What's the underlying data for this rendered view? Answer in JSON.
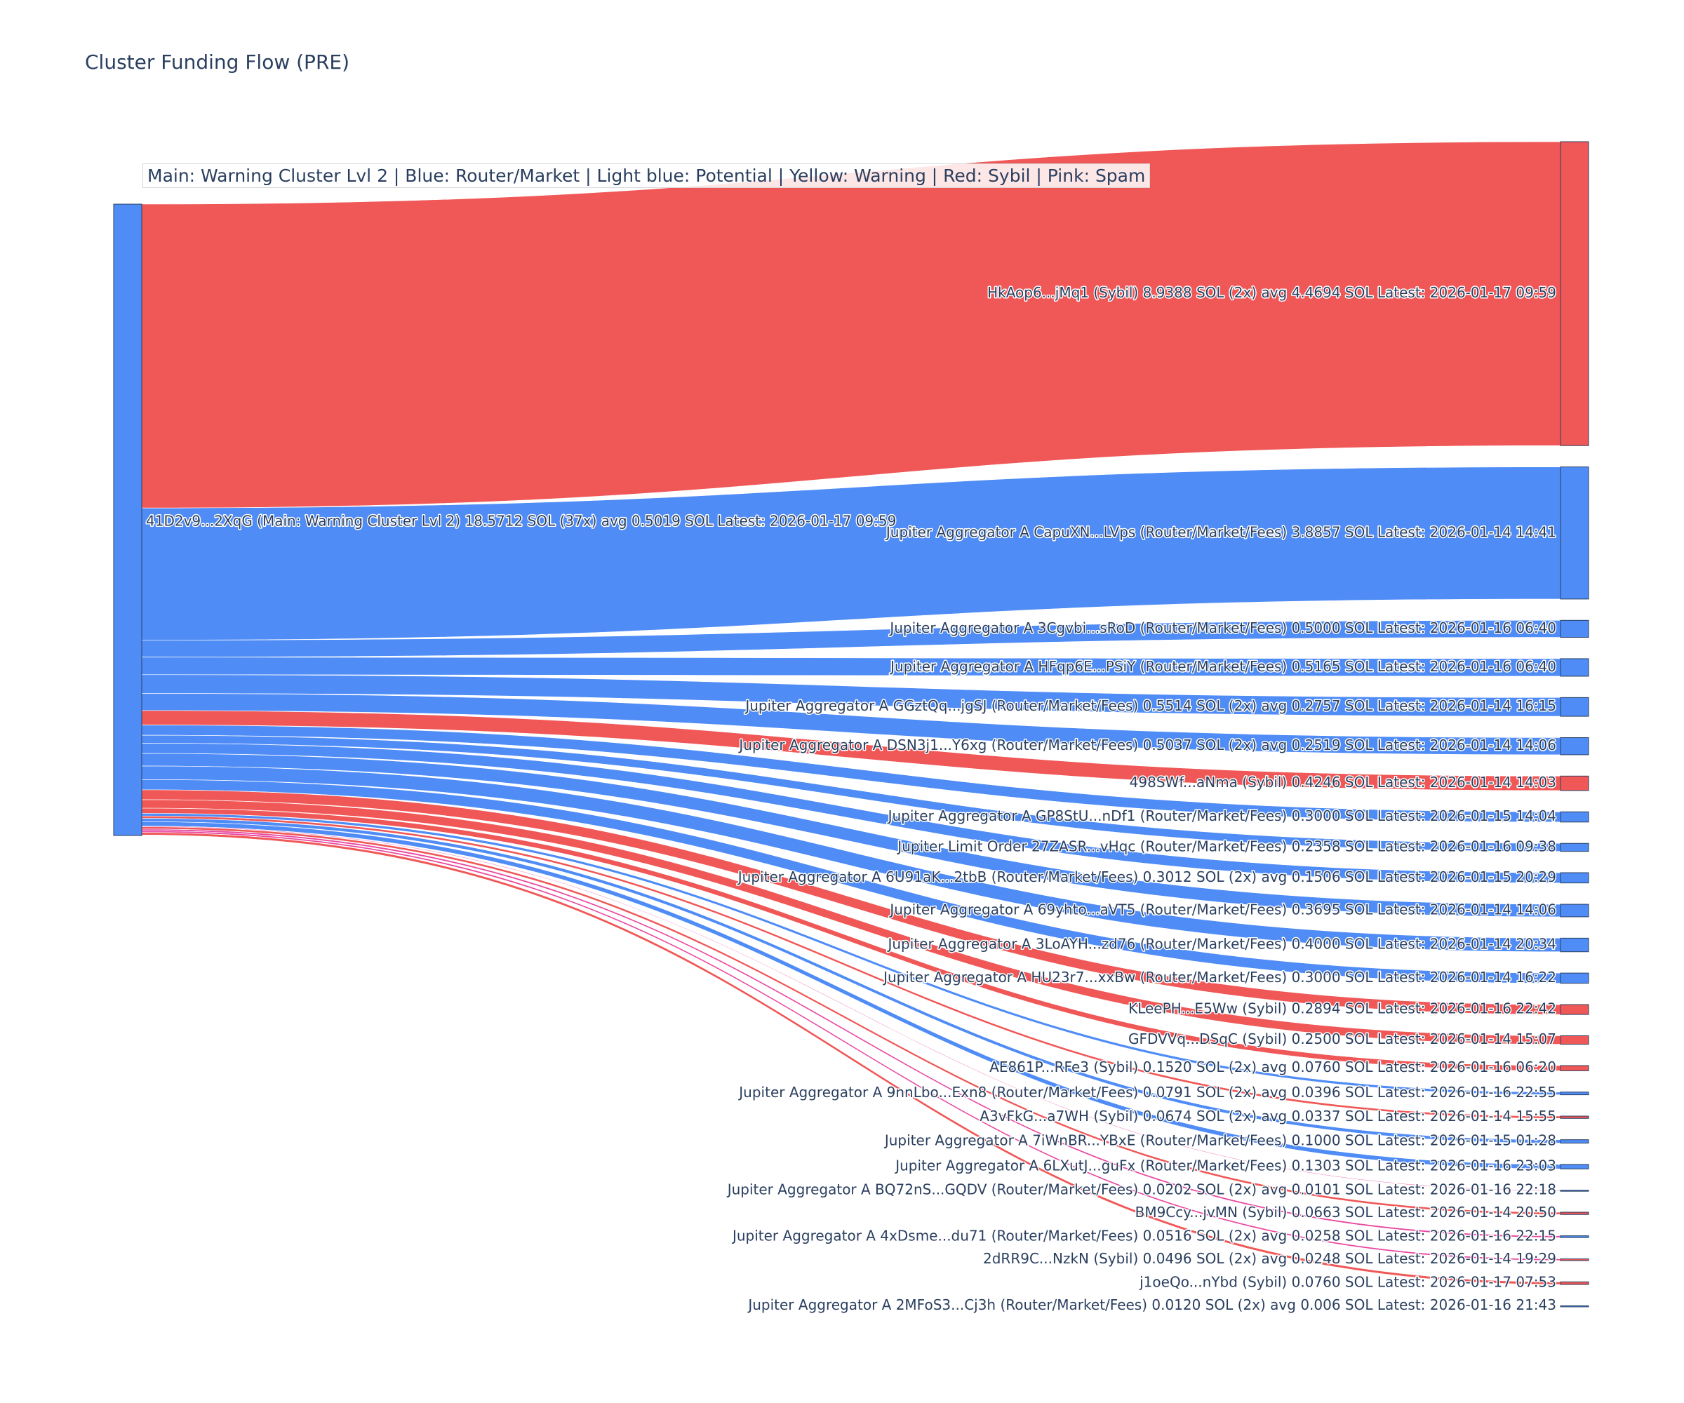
{
  "chart_data": {
    "type": "sankey",
    "title": "Cluster Funding Flow (PRE)",
    "legend_text": "Main: Warning Cluster Lvl 2  |  Blue: Router/Market | Light blue: Potential | Yellow: Warning | Red: Sybil | Pink: Spam",
    "colors": {
      "router": "#4f8cf6",
      "sybil": "#f05757",
      "spam": "#e8479f",
      "source": "#4f8cf6",
      "text": "#2a3f5f"
    },
    "source": {
      "label": "41D2v9...2XqG (Main: Warning Cluster Lvl 2) 18.5712 SOL (37x) avg 0.5019 SOL Latest: 2026-01-17 09:59"
    },
    "targets": [
      {
        "label": "HkAop6...jMq1 (Sybil) 8.9388 SOL (2x) avg 4.4694 SOL Latest: 2026-01-17 09:59",
        "value": 8.9388,
        "category": "sybil"
      },
      {
        "label": "Jupiter Aggregator A CapuXN...LVps (Router/Market/Fees) 3.8857 SOL Latest: 2026-01-14 14:41",
        "value": 3.8857,
        "category": "router"
      },
      {
        "label": "Jupiter Aggregator A 3Cgvbi...sRoD (Router/Market/Fees) 0.5000 SOL Latest: 2026-01-16 06:40",
        "value": 0.5,
        "category": "router"
      },
      {
        "label": "Jupiter Aggregator A HFqp6E...PSiY (Router/Market/Fees) 0.5165 SOL Latest: 2026-01-16 06:40",
        "value": 0.5165,
        "category": "router"
      },
      {
        "label": "Jupiter Aggregator A GGztQq...jgSJ (Router/Market/Fees) 0.5514 SOL (2x) avg 0.2757 SOL Latest: 2026-01-14 16:15",
        "value": 0.5514,
        "category": "router"
      },
      {
        "label": "Jupiter Aggregator A DSN3j1...Y6xg (Router/Market/Fees) 0.5037 SOL (2x) avg 0.2519 SOL Latest: 2026-01-14 14:06",
        "value": 0.5037,
        "category": "router"
      },
      {
        "label": "498SWf...aNma (Sybil) 0.4246 SOL Latest: 2026-01-14 14:03",
        "value": 0.4246,
        "category": "sybil"
      },
      {
        "label": "Jupiter Aggregator A GP8StU...nDf1 (Router/Market/Fees) 0.3000 SOL Latest: 2026-01-15 14:04",
        "value": 0.3,
        "category": "router"
      },
      {
        "label": "Jupiter Limit Order  27ZASR...vHqc (Router/Market/Fees) 0.2358 SOL Latest: 2026-01-16 09:38",
        "value": 0.2358,
        "category": "router"
      },
      {
        "label": "Jupiter Aggregator A 6U91aK...2tbB (Router/Market/Fees) 0.3012 SOL (2x) avg 0.1506 SOL Latest: 2026-01-15 20:29",
        "value": 0.3012,
        "category": "router"
      },
      {
        "label": "Jupiter Aggregator A 69yhto...aVT5 (Router/Market/Fees) 0.3695 SOL Latest: 2026-01-14 14:06",
        "value": 0.3695,
        "category": "router"
      },
      {
        "label": "Jupiter Aggregator A 3LoAYH...zd76 (Router/Market/Fees) 0.4000 SOL Latest: 2026-01-14 20:34",
        "value": 0.4,
        "category": "router"
      },
      {
        "label": "Jupiter Aggregator A HU23r7...xxBw (Router/Market/Fees) 0.3000 SOL Latest: 2026-01-14 16:22",
        "value": 0.3,
        "category": "router"
      },
      {
        "label": "KLeePH...E5Ww (Sybil) 0.2894 SOL Latest: 2026-01-16 22:42",
        "value": 0.2894,
        "category": "sybil"
      },
      {
        "label": "GFDVVq...DSqC (Sybil) 0.2500 SOL Latest: 2026-01-14 15:07",
        "value": 0.25,
        "category": "sybil"
      },
      {
        "label": "AE861P...RFe3 (Sybil) 0.1520 SOL (2x) avg 0.0760 SOL Latest: 2026-01-16 06:20",
        "value": 0.152,
        "category": "sybil"
      },
      {
        "label": "Jupiter Aggregator A 9nnLbo...Exn8 (Router/Market/Fees) 0.0791 SOL (2x) avg 0.0396 SOL Latest: 2026-01-16 22:55",
        "value": 0.0791,
        "category": "router"
      },
      {
        "label": "A3vFkG...a7WH (Sybil) 0.0674 SOL (2x) avg 0.0337 SOL Latest: 2026-01-14 15:55",
        "value": 0.0674,
        "category": "sybil"
      },
      {
        "label": "Jupiter Aggregator A 7iWnBR...YBxE (Router/Market/Fees) 0.1000 SOL Latest: 2026-01-15 01:28",
        "value": 0.1,
        "category": "router"
      },
      {
        "label": "Jupiter Aggregator A 6LXutJ...guFx (Router/Market/Fees) 0.1303 SOL Latest: 2026-01-16 23:03",
        "value": 0.1303,
        "category": "router"
      },
      {
        "label": "Jupiter Aggregator A BQ72nS...GQDV (Router/Market/Fees) 0.0202 SOL (2x) avg 0.0101 SOL Latest: 2026-01-16 22:18",
        "value": 0.0202,
        "category": "router"
      },
      {
        "label": "BM9Ccy...jvMN (Sybil) 0.0663 SOL Latest: 2026-01-14 20:50",
        "value": 0.0663,
        "category": "sybil"
      },
      {
        "label": "Jupiter Aggregator A 4xDsme...du71 (Router/Market/Fees) 0.0516 SOL (2x) avg 0.0258 SOL Latest: 2026-01-16 22:15",
        "value": 0.0516,
        "category": "router"
      },
      {
        "label": "2dRR9C...NzkN (Sybil) 0.0496 SOL (2x) avg 0.0248 SOL Latest: 2026-01-14 19:29",
        "value": 0.0496,
        "category": "sybil"
      },
      {
        "label": "j1oeQo...nYbd (Sybil) 0.0760 SOL Latest: 2026-01-17 07:53",
        "value": 0.076,
        "category": "sybil"
      },
      {
        "label": "Jupiter Aggregator A 2MFoS3...Cj3h (Router/Market/Fees) 0.0120 SOL (2x) avg 0.006 SOL Latest: 2026-01-16 21:43",
        "value": 0.012,
        "category": "router"
      }
    ],
    "links": [
      {
        "target": 0,
        "value": 8.9388,
        "category": "sybil"
      },
      {
        "target": 1,
        "value": 3.8857,
        "category": "router"
      },
      {
        "target": 2,
        "value": 0.5,
        "category": "router"
      },
      {
        "target": 3,
        "value": 0.5165,
        "category": "router"
      },
      {
        "target": 4,
        "value": 0.5514,
        "category": "router"
      },
      {
        "target": 5,
        "value": 0.5037,
        "category": "router"
      },
      {
        "target": 6,
        "value": 0.4246,
        "category": "sybil"
      },
      {
        "target": 7,
        "value": 0.3,
        "category": "router"
      },
      {
        "target": 8,
        "value": 0.2358,
        "category": "router"
      },
      {
        "target": 9,
        "value": 0.3012,
        "category": "router"
      },
      {
        "target": 10,
        "value": 0.3695,
        "category": "router"
      },
      {
        "target": 11,
        "value": 0.4,
        "category": "router"
      },
      {
        "target": 12,
        "value": 0.3,
        "category": "router"
      },
      {
        "target": 13,
        "value": 0.2894,
        "category": "sybil"
      },
      {
        "target": 14,
        "value": 0.25,
        "category": "sybil"
      },
      {
        "target": 15,
        "value": 0.152,
        "category": "sybil"
      },
      {
        "target": 16,
        "value": 0.0791,
        "category": "router"
      },
      {
        "target": 17,
        "value": 0.0674,
        "category": "sybil"
      },
      {
        "target": 18,
        "value": 0.1,
        "category": "router"
      },
      {
        "target": 19,
        "value": 0.1303,
        "category": "router"
      },
      {
        "target": 20,
        "value": 0.0202,
        "category": "spam"
      },
      {
        "target": 21,
        "value": 0.0663,
        "category": "sybil"
      },
      {
        "target": 22,
        "value": 0.0516,
        "category": "spam"
      },
      {
        "target": 23,
        "value": 0.0496,
        "category": "spam"
      },
      {
        "target": 24,
        "value": 0.076,
        "category": "sybil"
      },
      {
        "target": 25,
        "value": 0.012,
        "category": "spam"
      }
    ]
  }
}
